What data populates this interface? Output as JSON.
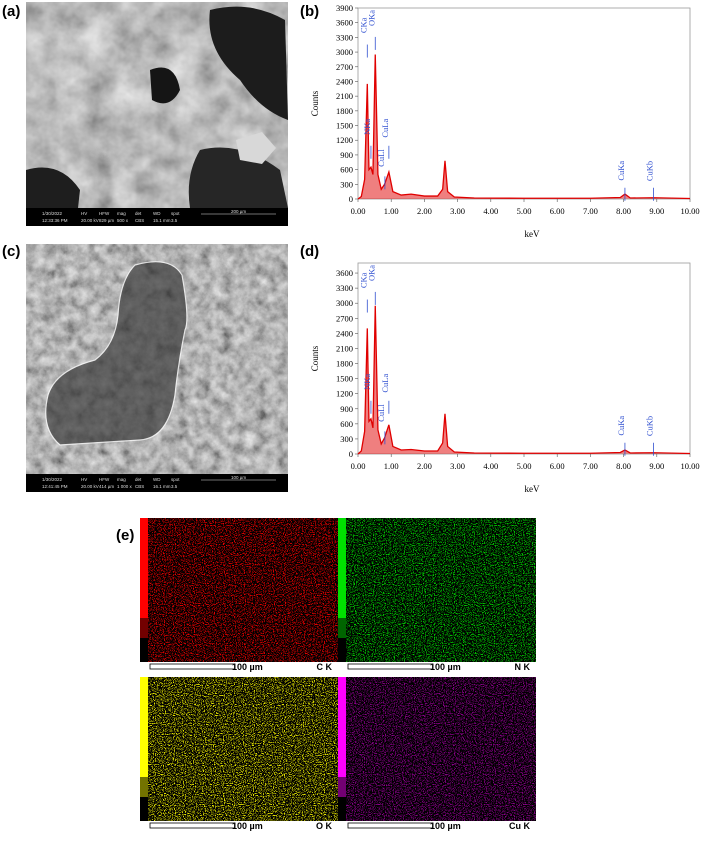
{
  "panels": {
    "a": "(a)",
    "b": "(b)",
    "c": "(c)",
    "d": "(d)",
    "e": "(e)"
  },
  "sem_headers": [
    "HV",
    "HFW",
    "mag",
    "det",
    "WD",
    "spot"
  ],
  "sem": [
    {
      "date": "1/30/2022",
      "time": "12:33:36 PM",
      "hv": "20.00 kV",
      "hfw": "829 µm",
      "mag": "500 x",
      "det": "CBS",
      "wd": "15.1 mm",
      "spot": "3.5",
      "scale": "200 µm"
    },
    {
      "date": "1/30/2022",
      "time": "12:41:45 PM",
      "hv": "20.00 kV",
      "hfw": "414 µm",
      "mag": "1 000 x",
      "det": "CBS",
      "wd": "16.1 mm",
      "spot": "3.5",
      "scale": "100 µm"
    }
  ],
  "maps": [
    {
      "scale": "100 µm",
      "element": "C K",
      "color": "#ff0000"
    },
    {
      "scale": "100 µm",
      "element": "N K",
      "color": "#00e000"
    },
    {
      "scale": "100 µm",
      "element": "O K",
      "color": "#ffff00"
    },
    {
      "scale": "100 µm",
      "element": "Cu K",
      "color": "#ff00ff"
    }
  ],
  "chart_data": [
    {
      "type": "line",
      "x_label": "keV",
      "y_label": "Counts",
      "color": "#e00000",
      "x": [
        0,
        0.1,
        0.2,
        0.28,
        0.33,
        0.39,
        0.45,
        0.52,
        0.6,
        0.7,
        0.8,
        0.93,
        1.05,
        1.3,
        1.6,
        2.0,
        2.4,
        2.55,
        2.62,
        2.7,
        2.9,
        3.5,
        5,
        7,
        7.9,
        8.04,
        8.2,
        8.9,
        10
      ],
      "values": [
        0,
        50,
        400,
        2350,
        600,
        650,
        500,
        2950,
        500,
        200,
        300,
        550,
        150,
        80,
        100,
        60,
        60,
        200,
        780,
        150,
        40,
        20,
        15,
        15,
        30,
        100,
        20,
        25,
        10
      ],
      "xlim": [
        0,
        10
      ],
      "ylim": [
        0,
        3900
      ],
      "xticks": [
        {
          "value": 0,
          "label": "0.00"
        },
        {
          "value": 1,
          "label": "1.00"
        },
        {
          "value": 2,
          "label": "2.00"
        },
        {
          "value": 3,
          "label": "3.00"
        },
        {
          "value": 4,
          "label": "4.00"
        },
        {
          "value": 5,
          "label": "5.00"
        },
        {
          "value": 6,
          "label": "6.00"
        },
        {
          "value": 7,
          "label": "7.00"
        },
        {
          "value": 8,
          "label": "8.00"
        },
        {
          "value": 9,
          "label": "9.00"
        },
        {
          "value": 10,
          "label": "10.00"
        }
      ],
      "yticks": [
        0,
        300,
        600,
        900,
        1200,
        1500,
        1800,
        2100,
        2400,
        2700,
        3000,
        3300,
        3600,
        3900
      ],
      "annotation_color": "#3050d0",
      "annotations": [
        {
          "label": "CKa",
          "x": 0.28
        },
        {
          "label": "OKa",
          "x": 0.52
        },
        {
          "label": "NKa",
          "x": 0.39
        },
        {
          "label": "CuLl",
          "x": 0.81
        },
        {
          "label": "CuLa",
          "x": 0.93
        },
        {
          "label": "CuKa",
          "x": 8.04
        },
        {
          "label": "CuKb",
          "x": 8.9
        }
      ]
    },
    {
      "type": "line",
      "x_label": "keV",
      "y_label": "Counts",
      "color": "#e00000",
      "x": [
        0,
        0.1,
        0.2,
        0.28,
        0.33,
        0.39,
        0.45,
        0.52,
        0.6,
        0.7,
        0.8,
        0.93,
        1.05,
        1.3,
        1.6,
        2.0,
        2.4,
        2.55,
        2.62,
        2.7,
        2.9,
        3.5,
        5,
        7,
        7.9,
        8.04,
        8.2,
        8.9,
        10
      ],
      "values": [
        0,
        60,
        450,
        2500,
        650,
        700,
        520,
        2950,
        480,
        200,
        320,
        580,
        150,
        80,
        90,
        60,
        60,
        220,
        800,
        150,
        40,
        20,
        15,
        15,
        30,
        80,
        20,
        25,
        10
      ],
      "xlim": [
        0,
        10
      ],
      "ylim": [
        0,
        3800
      ],
      "xticks": [
        {
          "value": 0,
          "label": "0.00"
        },
        {
          "value": 1,
          "label": "1.00"
        },
        {
          "value": 2,
          "label": "2.00"
        },
        {
          "value": 3,
          "label": "3.00"
        },
        {
          "value": 4,
          "label": "4.00"
        },
        {
          "value": 5,
          "label": "5.00"
        },
        {
          "value": 6,
          "label": "6.00"
        },
        {
          "value": 7,
          "label": "7.00"
        },
        {
          "value": 8,
          "label": "8.00"
        },
        {
          "value": 9,
          "label": "9.00"
        },
        {
          "value": 10,
          "label": "10.00"
        }
      ],
      "yticks": [
        0,
        300,
        600,
        900,
        1200,
        1500,
        1800,
        2100,
        2400,
        2700,
        3000,
        3300,
        3600
      ],
      "annotation_color": "#3050d0",
      "annotations": [
        {
          "label": "CKa",
          "x": 0.28
        },
        {
          "label": "OKa",
          "x": 0.52
        },
        {
          "label": "NKa",
          "x": 0.39
        },
        {
          "label": "CuLl",
          "x": 0.81
        },
        {
          "label": "CuLa",
          "x": 0.93
        },
        {
          "label": "CuKa",
          "x": 8.04
        },
        {
          "label": "CuKb",
          "x": 8.9
        }
      ]
    }
  ]
}
